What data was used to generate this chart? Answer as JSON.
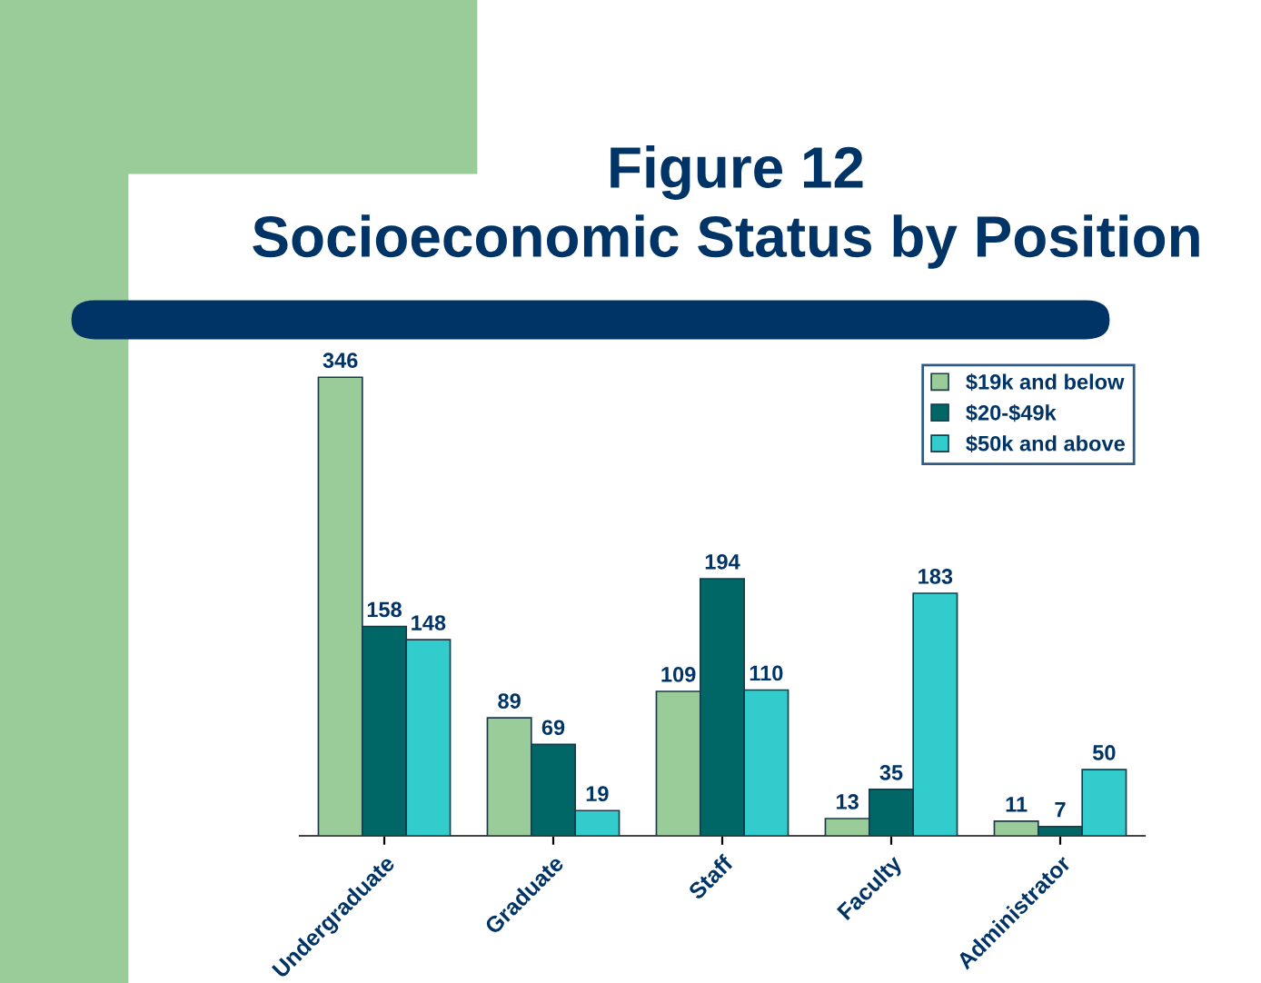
{
  "chart_data": {
    "type": "bar",
    "title": "Figure 12",
    "subtitle": "Socioeconomic Status by Position",
    "categories": [
      "Undergraduate",
      "Graduate",
      "Staff",
      "Faculty",
      "Administrator"
    ],
    "series": [
      {
        "name": "$19k and below",
        "color": "#99cc99",
        "values": [
          346,
          89,
          109,
          13,
          11
        ]
      },
      {
        "name": "$20-$49k",
        "color": "#006666",
        "values": [
          158,
          69,
          194,
          35,
          7
        ]
      },
      {
        "name": "$50k and above",
        "color": "#33cccc",
        "values": [
          148,
          19,
          110,
          183,
          50
        ]
      }
    ],
    "data_labels": true,
    "legend": "top right",
    "grid": false,
    "tick_labels": "x"
  }
}
